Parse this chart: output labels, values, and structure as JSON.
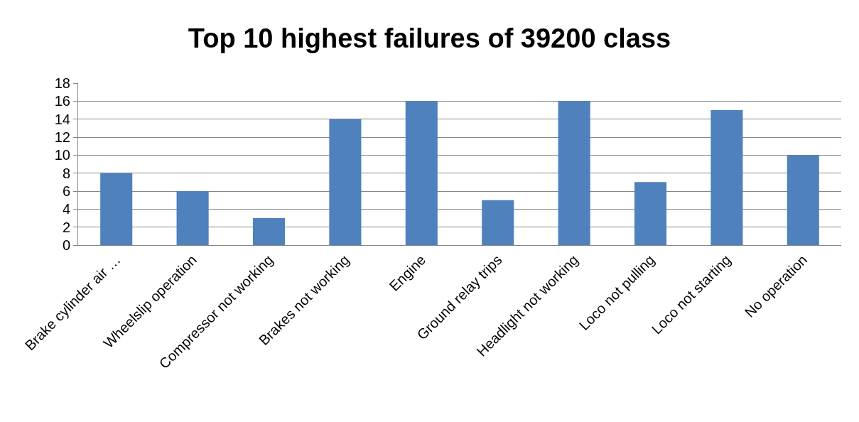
{
  "chart_data": {
    "type": "bar",
    "title": "Top 10 highest failures of 39200 class",
    "categories": [
      "Brake cylinder air …",
      "Wheelslip operation",
      "Compressor not working",
      "Brakes not working",
      "Engine",
      "Ground relay trips",
      "Headlight not working",
      "Loco not pulling",
      "Loco not starting",
      "No operation"
    ],
    "values": [
      8,
      6,
      3,
      14,
      16,
      5,
      16,
      7,
      15,
      10
    ],
    "color": "#4f81bd",
    "ylim": [
      0,
      18
    ],
    "yticks": [
      0,
      2,
      4,
      6,
      8,
      10,
      12,
      14,
      16,
      18
    ],
    "grid": "y"
  }
}
